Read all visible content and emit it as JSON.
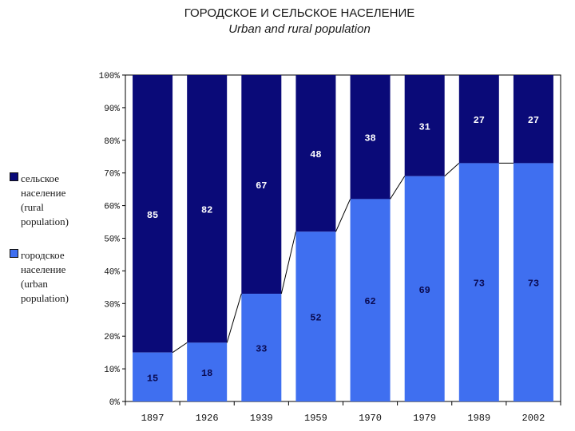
{
  "title": "ГОРОДСКОЕ И СЕЛЬСКОЕ НАСЕЛЕНИЕ",
  "subtitle": "Urban and rural population",
  "colors": {
    "rural": "#0a0a78",
    "urban": "#3f6ff0"
  },
  "legend": {
    "rural": "сельское\nнаселение\n(rural\npopulation)",
    "urban": "городское\nнаселение\n(urban\npopulation)"
  },
  "chart_data": {
    "type": "bar",
    "stacked": true,
    "categories": [
      "1897",
      "1926",
      "1939",
      "1959",
      "1970",
      "1979",
      "1989",
      "2002"
    ],
    "series": [
      {
        "name": "городское население (urban population)",
        "values": [
          15,
          18,
          33,
          52,
          62,
          69,
          73,
          73
        ]
      },
      {
        "name": "сельское население (rural population)",
        "values": [
          85,
          82,
          67,
          48,
          38,
          31,
          27,
          27
        ]
      }
    ],
    "yticks": [
      "0%",
      "10%",
      "20%",
      "30%",
      "40%",
      "50%",
      "60%",
      "70%",
      "80%",
      "90%",
      "100%"
    ],
    "ylim": [
      0,
      100
    ],
    "grid": false,
    "legend_position": "left"
  }
}
